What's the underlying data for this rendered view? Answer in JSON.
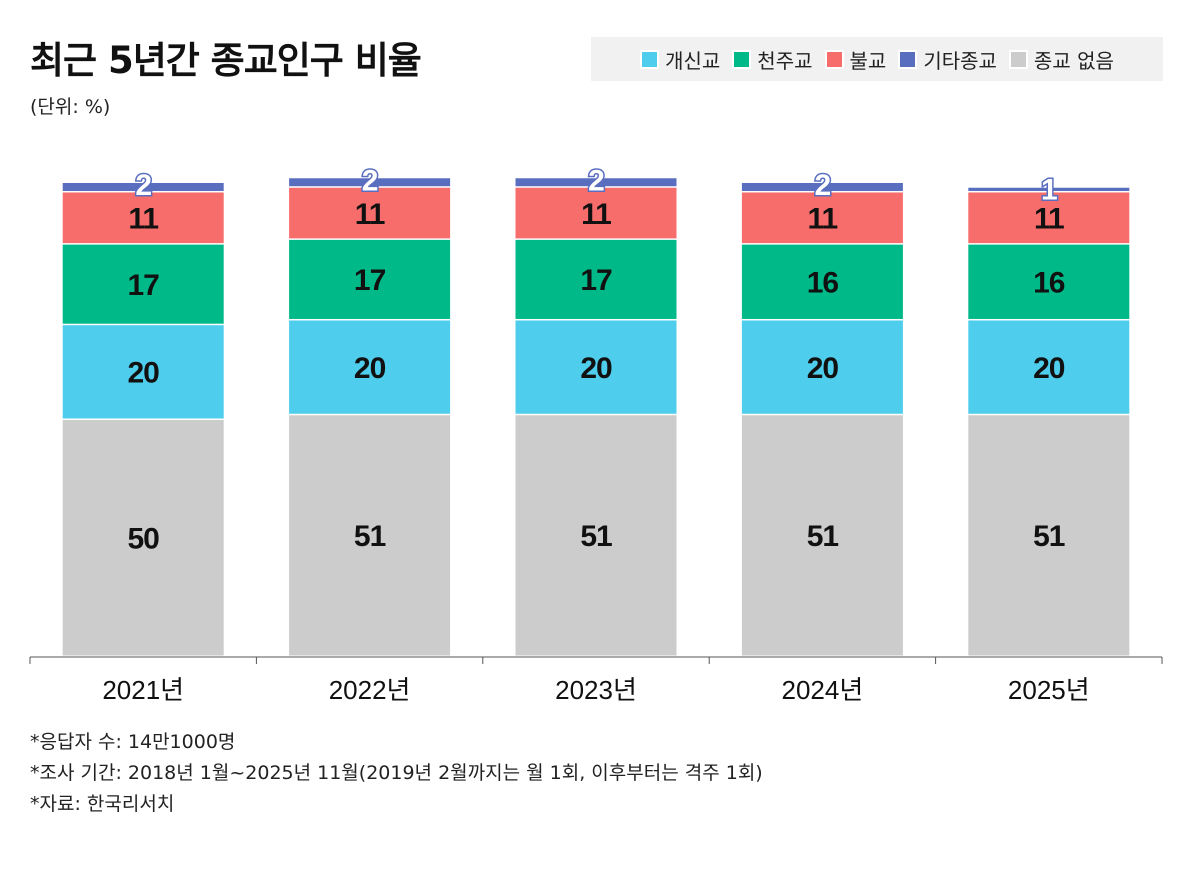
{
  "chart_data": {
    "type": "bar",
    "stacked": true,
    "title": "최근 5년간 종교인구 비율",
    "subtitle": "(단위: %)",
    "categories": [
      "2021년",
      "2022년",
      "2023년",
      "2024년",
      "2025년"
    ],
    "series": [
      {
        "name": "종교 없음",
        "color": "#cccccc",
        "values": [
          50,
          51,
          51,
          51,
          51
        ]
      },
      {
        "name": "개신교",
        "color": "#4ecdec",
        "values": [
          20,
          20,
          20,
          20,
          20
        ]
      },
      {
        "name": "천주교",
        "color": "#00b988",
        "values": [
          17,
          17,
          17,
          16,
          16
        ]
      },
      {
        "name": "불교",
        "color": "#f76d6b",
        "values": [
          11,
          11,
          11,
          11,
          11
        ]
      },
      {
        "name": "기타종교",
        "color": "#5a6ec0",
        "values": [
          2,
          2,
          2,
          2,
          1
        ]
      }
    ],
    "legend_order": [
      "개신교",
      "천주교",
      "불교",
      "기타종교",
      "종교 없음"
    ],
    "legend_placement": "top-right",
    "ylim": [
      0,
      100
    ],
    "grid": false
  },
  "notes": [
    "*응답자 수: 14만1000명",
    "*조사 기간: 2018년 1월~2025년 11월(2019년 2월까지는 월 1회, 이후부터는 격주 1회)",
    "*자료: 한국리서치"
  ]
}
